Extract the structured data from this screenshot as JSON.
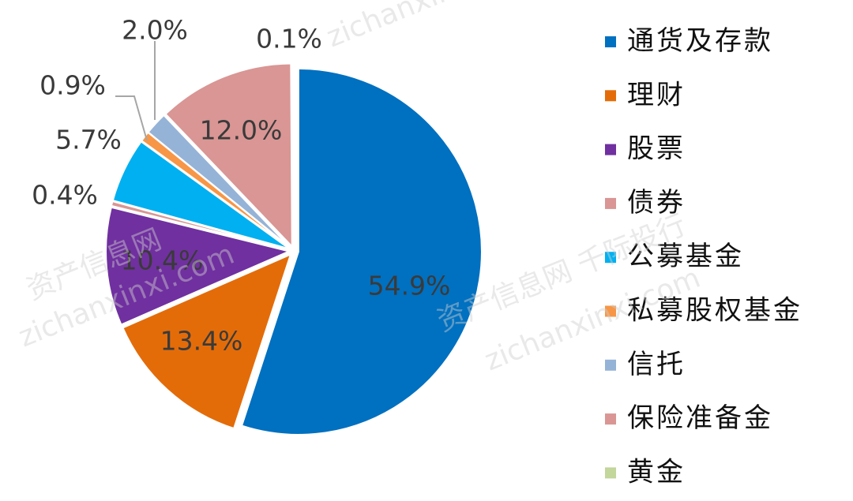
{
  "chart_data": {
    "type": "pie",
    "slices": [
      {
        "label": "通货及存款",
        "value": 54.9,
        "value_label": "54.9%",
        "color": "#0070C0"
      },
      {
        "label": "理财",
        "value": 13.4,
        "value_label": "13.4%",
        "color": "#E36C09"
      },
      {
        "label": "股票",
        "value": 10.4,
        "value_label": "10.4%",
        "color": "#7030A0"
      },
      {
        "label": "债券",
        "value": 0.4,
        "value_label": "0.4%",
        "color": "#D99694"
      },
      {
        "label": "公募基金",
        "value": 5.7,
        "value_label": "5.7%",
        "color": "#00B0F0"
      },
      {
        "label": "私募股权基金",
        "value": 0.9,
        "value_label": "0.9%",
        "color": "#F79646"
      },
      {
        "label": "信托",
        "value": 2.0,
        "value_label": "2.0%",
        "color": "#95B3D7"
      },
      {
        "label": "保险准备金",
        "value": 12.0,
        "value_label": "12.0%",
        "color": "#D99694"
      },
      {
        "label": "黄金",
        "value": 0.1,
        "value_label": "0.1%",
        "color": "#C3D69B"
      }
    ],
    "legend_position": "right"
  },
  "watermarks": [
    "zichanxinxi",
    "资产信息网 千际投行",
    "zichanxinxi.com",
    "资产信息网",
    "zichanxinxi.com"
  ]
}
